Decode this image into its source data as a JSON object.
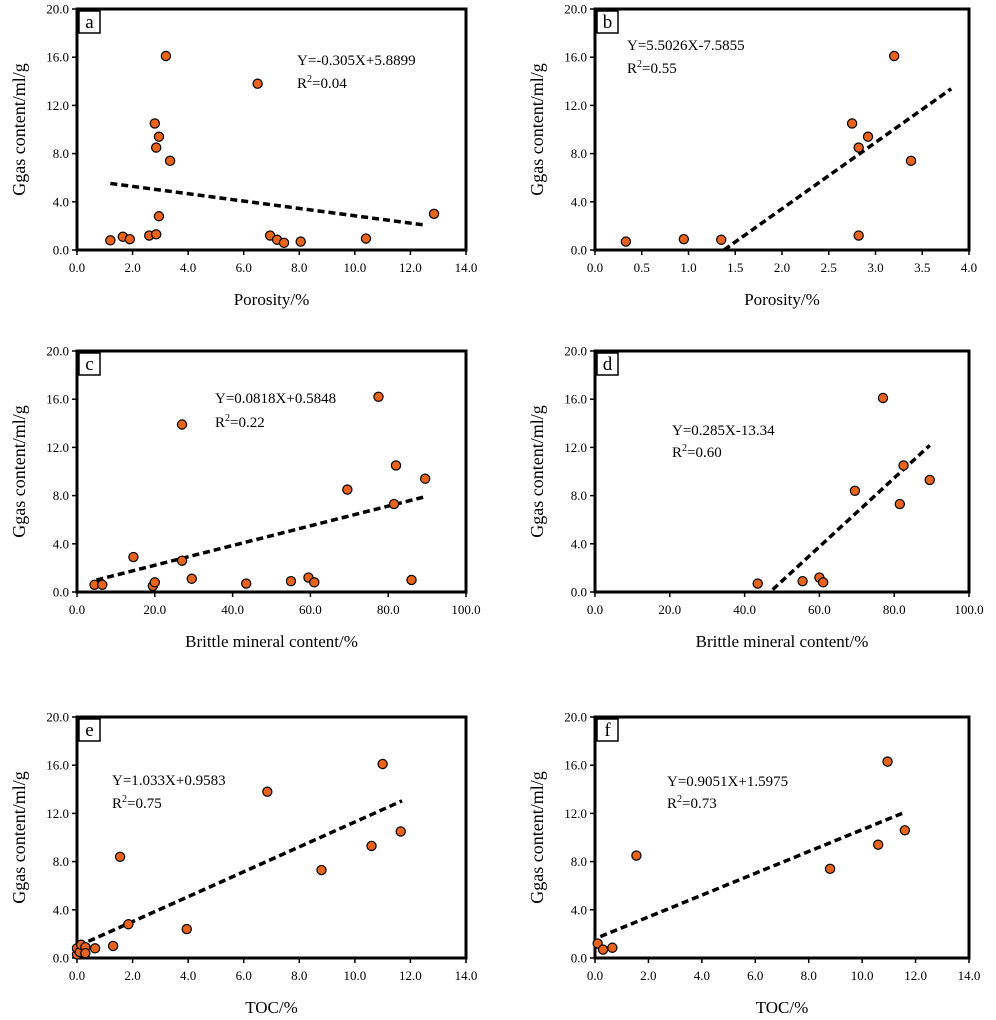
{
  "figure": {
    "marker_fill": "#E8631C",
    "marker_stroke": "#000000",
    "axis_color": "#000000"
  },
  "chart_data": [
    {
      "type": "scatter",
      "panel": "a",
      "xlabel": "Porosity/%",
      "ylabel": "Ggas content/ml/g",
      "xlim": [
        0,
        14
      ],
      "ylim": [
        0,
        20
      ],
      "xticks": [
        "0.0",
        "2.0",
        "4.0",
        "6.0",
        "8.0",
        "10.0",
        "12.0",
        "14.0"
      ],
      "yticks": [
        "0.0",
        "4.0",
        "8.0",
        "12.0",
        "16.0",
        "20.0"
      ],
      "equation": "Y=-0.305X+5.8899",
      "r2_label": "R",
      "r2_value": "=0.04",
      "trendline": {
        "x": [
          1.2,
          12.5
        ]
      },
      "points": [
        [
          1.2,
          0.8
        ],
        [
          1.65,
          1.1
        ],
        [
          1.9,
          0.9
        ],
        [
          2.6,
          1.2
        ],
        [
          2.85,
          1.3
        ],
        [
          2.95,
          2.8
        ],
        [
          2.8,
          10.5
        ],
        [
          2.95,
          9.4
        ],
        [
          2.85,
          8.5
        ],
        [
          3.35,
          7.4
        ],
        [
          3.2,
          16.1
        ],
        [
          6.5,
          13.8
        ],
        [
          6.95,
          1.2
        ],
        [
          7.2,
          0.85
        ],
        [
          7.45,
          0.6
        ],
        [
          8.05,
          0.7
        ],
        [
          10.4,
          0.95
        ],
        [
          12.85,
          3.0
        ]
      ]
    },
    {
      "type": "scatter",
      "panel": "b",
      "xlabel": "Porosity/%",
      "ylabel": "Ggas content/ml/g",
      "xlim": [
        0,
        4
      ],
      "ylim": [
        0,
        20
      ],
      "xticks": [
        "0.0",
        "0.5",
        "1.0",
        "1.5",
        "2.0",
        "2.5",
        "3.0",
        "3.5",
        "4.0"
      ],
      "yticks": [
        "0.0",
        "4.0",
        "8.0",
        "12.0",
        "16.0",
        "20.0"
      ],
      "equation": "Y=5.5026X-7.5855",
      "r2_label": "R",
      "r2_value": "=0.55",
      "trendline": {
        "x": [
          1.38,
          3.81
        ]
      },
      "points": [
        [
          0.33,
          0.7
        ],
        [
          0.95,
          0.9
        ],
        [
          1.35,
          0.85
        ],
        [
          2.75,
          10.5
        ],
        [
          2.92,
          9.4
        ],
        [
          2.82,
          8.5
        ],
        [
          3.2,
          16.1
        ],
        [
          3.38,
          7.4
        ],
        [
          2.82,
          1.2
        ]
      ]
    },
    {
      "type": "scatter",
      "panel": "c",
      "xlabel": "Brittle mineral content/%",
      "ylabel": "Ggas content/ml/g",
      "xlim": [
        0,
        100
      ],
      "ylim": [
        0,
        20
      ],
      "xticks": [
        "0.0",
        "20.0",
        "40.0",
        "60.0",
        "80.0",
        "100.0"
      ],
      "yticks": [
        "0.0",
        "4.0",
        "8.0",
        "12.0",
        "16.0",
        "20.0"
      ],
      "equation": "Y=0.0818X+0.5848",
      "r2_label": "R",
      "r2_value": "=0.22",
      "trendline": {
        "x": [
          5,
          89
        ]
      },
      "points": [
        [
          4.5,
          0.6
        ],
        [
          6.5,
          0.6
        ],
        [
          14.5,
          2.9
        ],
        [
          19.5,
          0.5
        ],
        [
          20.0,
          0.8
        ],
        [
          27.0,
          2.6
        ],
        [
          27.0,
          13.9
        ],
        [
          29.5,
          1.1
        ],
        [
          43.5,
          0.7
        ],
        [
          55.0,
          0.9
        ],
        [
          59.5,
          1.2
        ],
        [
          61.0,
          0.8
        ],
        [
          69.5,
          8.5
        ],
        [
          77.5,
          16.2
        ],
        [
          81.5,
          7.3
        ],
        [
          82.0,
          10.5
        ],
        [
          86.0,
          1.0
        ],
        [
          89.5,
          9.4
        ]
      ]
    },
    {
      "type": "scatter",
      "panel": "d",
      "xlabel": "Brittle mineral content/%",
      "ylabel": "Ggas content/ml/g",
      "xlim": [
        0,
        100
      ],
      "ylim": [
        0,
        20
      ],
      "xticks": [
        "0.0",
        "20.0",
        "40.0",
        "60.0",
        "80.0",
        "100.0"
      ],
      "yticks": [
        "0.0",
        "4.0",
        "8.0",
        "12.0",
        "16.0",
        "20.0"
      ],
      "equation": "Y=0.285X-13.34",
      "r2_label": "R",
      "r2_value": "=0.60",
      "trendline": {
        "x": [
          47.5,
          89.5
        ]
      },
      "points": [
        [
          43.5,
          0.7
        ],
        [
          55.5,
          0.9
        ],
        [
          60.0,
          1.2
        ],
        [
          61.0,
          0.8
        ],
        [
          69.5,
          8.4
        ],
        [
          77.0,
          16.1
        ],
        [
          81.5,
          7.3
        ],
        [
          82.5,
          10.5
        ],
        [
          89.5,
          9.3
        ]
      ]
    },
    {
      "type": "scatter",
      "panel": "e",
      "xlabel": "TOC/%",
      "ylabel": "Ggas content/ml/g",
      "xlim": [
        0,
        14
      ],
      "ylim": [
        0,
        20
      ],
      "xticks": [
        "0.0",
        "2.0",
        "4.0",
        "6.0",
        "8.0",
        "10.0",
        "12.0",
        "14.0"
      ],
      "yticks": [
        "0.0",
        "4.0",
        "8.0",
        "12.0",
        "16.0",
        "20.0"
      ],
      "equation": "Y=1.033X+0.9583",
      "r2_label": "R",
      "r2_value": "=0.75",
      "trendline": {
        "x": [
          0.05,
          11.7
        ]
      },
      "points": [
        [
          0.0,
          0.3
        ],
        [
          0.0,
          0.8
        ],
        [
          0.1,
          0.5
        ],
        [
          0.15,
          1.1
        ],
        [
          0.3,
          0.9
        ],
        [
          0.3,
          0.4
        ],
        [
          0.65,
          0.8
        ],
        [
          1.3,
          1.0
        ],
        [
          1.55,
          8.4
        ],
        [
          1.85,
          2.8
        ],
        [
          3.95,
          2.4
        ],
        [
          6.85,
          13.8
        ],
        [
          8.8,
          7.3
        ],
        [
          10.6,
          9.3
        ],
        [
          11.0,
          16.1
        ],
        [
          11.65,
          10.5
        ]
      ]
    },
    {
      "type": "scatter",
      "panel": "f",
      "xlabel": "TOC/%",
      "ylabel": "Ggas content/ml/g",
      "xlim": [
        0,
        14
      ],
      "ylim": [
        0,
        20
      ],
      "xticks": [
        "0.0",
        "2.0",
        "4.0",
        "6.0",
        "8.0",
        "10.0",
        "12.0",
        "14.0"
      ],
      "yticks": [
        "0.0",
        "4.0",
        "8.0",
        "12.0",
        "16.0",
        "20.0"
      ],
      "equation": "Y=0.9051X+1.5975",
      "r2_label": "R",
      "r2_value": "=0.73",
      "trendline": {
        "x": [
          0.2,
          11.6
        ]
      },
      "points": [
        [
          0.1,
          1.2
        ],
        [
          0.3,
          0.7
        ],
        [
          0.65,
          0.85
        ],
        [
          1.55,
          8.5
        ],
        [
          8.8,
          7.4
        ],
        [
          10.6,
          9.4
        ],
        [
          10.95,
          16.3
        ],
        [
          11.6,
          10.6
        ]
      ]
    }
  ]
}
